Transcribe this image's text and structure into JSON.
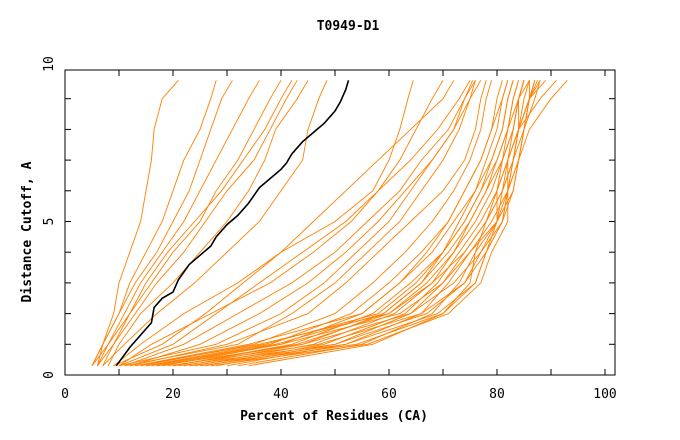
{
  "chart_data": {
    "type": "line",
    "title": "T0949-D1",
    "xlabel": "Percent of Residues (CA)",
    "ylabel": "Distance Cutoff, A",
    "xlim": [
      0,
      100
    ],
    "ylim": [
      0,
      10
    ],
    "xticks": [
      "0",
      "20",
      "40",
      "60",
      "80",
      "100"
    ],
    "yticks": [
      "0",
      "5",
      "10"
    ],
    "grid": false,
    "colors": {
      "models": "#ff8000",
      "highlight": "#000000"
    },
    "y_grid": [
      0.3,
      1,
      2,
      3,
      4,
      5,
      6,
      7,
      8,
      9,
      9.6
    ],
    "highlight_series": {
      "name": "highlighted model",
      "points": [
        [
          9.5,
          0.3
        ],
        [
          12,
          0.9
        ],
        [
          15,
          1.5
        ],
        [
          16,
          1.7
        ],
        [
          16.5,
          2.2
        ],
        [
          18,
          2.5
        ],
        [
          20,
          2.7
        ],
        [
          21,
          3.1
        ],
        [
          23,
          3.6
        ],
        [
          25,
          3.9
        ],
        [
          27,
          4.2
        ],
        [
          28,
          4.5
        ],
        [
          30,
          4.9
        ],
        [
          32,
          5.2
        ],
        [
          34,
          5.6
        ],
        [
          36,
          6.1
        ],
        [
          38,
          6.4
        ],
        [
          40,
          6.7
        ],
        [
          41,
          6.9
        ],
        [
          42,
          7.2
        ],
        [
          43,
          7.4
        ],
        [
          44,
          7.6
        ],
        [
          46,
          7.9
        ],
        [
          48,
          8.2
        ],
        [
          50,
          8.6
        ],
        [
          51,
          8.9
        ],
        [
          52,
          9.3
        ],
        [
          52.5,
          9.6
        ]
      ]
    },
    "series_x_at_y_grid": [
      [
        5,
        7,
        9,
        10,
        12,
        14,
        15,
        16,
        16.5,
        18,
        21
      ],
      [
        6,
        7,
        10,
        12,
        15,
        18,
        20,
        22,
        25,
        27,
        28
      ],
      [
        5,
        7,
        10,
        13,
        17,
        20,
        23,
        25,
        27,
        29,
        31
      ],
      [
        6,
        8,
        11,
        14,
        18,
        22,
        25,
        28,
        31,
        34,
        36
      ],
      [
        6,
        9,
        12,
        16,
        20,
        25,
        28,
        32,
        35,
        38,
        40
      ],
      [
        7,
        9,
        13,
        17,
        22,
        26,
        30,
        35,
        38,
        41,
        43
      ],
      [
        5,
        8,
        12,
        15,
        19,
        24,
        29,
        33,
        37,
        40,
        42
      ],
      [
        8,
        10,
        14,
        20,
        25,
        30,
        34,
        37,
        39,
        43,
        45
      ],
      [
        7,
        11,
        17,
        24,
        30,
        36,
        40,
        44,
        45,
        47,
        48.5
      ],
      [
        9,
        14,
        22,
        32,
        40,
        50,
        57,
        60,
        62,
        63.5,
        64.5
      ],
      [
        10,
        16,
        27,
        38,
        46,
        53,
        58,
        62,
        65,
        68,
        70
      ],
      [
        12,
        30,
        45,
        52,
        58,
        64,
        70,
        74,
        76,
        77,
        78
      ],
      [
        14,
        35,
        50,
        57,
        63,
        68,
        72,
        75,
        77,
        78,
        79
      ],
      [
        16,
        38,
        53,
        60,
        66,
        71,
        74,
        77,
        79,
        80,
        81
      ],
      [
        18,
        40,
        55,
        62,
        68,
        72,
        76,
        78,
        80,
        81,
        82
      ],
      [
        20,
        42,
        57,
        64,
        70,
        74,
        77,
        79,
        81,
        82,
        83
      ],
      [
        22,
        44,
        59,
        66,
        71,
        75,
        78,
        80,
        82,
        83,
        84
      ],
      [
        24,
        46,
        61,
        68,
        72,
        76,
        79,
        81,
        83,
        84,
        85
      ],
      [
        26,
        48,
        63,
        69,
        73,
        77,
        80,
        82,
        84,
        85,
        86
      ],
      [
        28,
        50,
        64,
        70,
        74,
        78,
        81,
        83,
        84,
        86,
        87
      ],
      [
        30,
        52,
        66,
        71,
        75,
        79,
        82,
        83,
        85,
        86,
        87.5
      ],
      [
        32,
        55,
        68,
        73,
        76,
        80,
        82,
        84,
        85,
        87,
        88
      ],
      [
        34,
        57,
        70,
        76,
        78,
        81,
        82,
        82,
        83,
        84,
        85
      ],
      [
        13,
        36,
        60,
        68,
        74,
        78,
        81,
        83,
        84,
        84,
        85
      ],
      [
        15,
        40,
        62,
        70,
        75,
        80,
        83,
        84,
        85,
        86,
        86
      ],
      [
        17,
        44,
        64,
        72,
        77,
        81,
        83,
        84,
        85,
        86,
        87
      ],
      [
        19,
        47,
        66,
        74,
        78,
        81,
        82,
        83,
        84,
        86,
        88
      ],
      [
        21,
        50,
        67,
        74,
        77,
        80,
        80,
        81,
        82,
        84,
        86
      ],
      [
        23,
        52,
        69,
        76,
        78,
        80,
        81,
        82,
        84,
        86,
        89
      ],
      [
        25,
        54,
        70,
        75,
        76,
        78,
        80,
        82,
        84,
        88,
        91
      ],
      [
        27,
        56,
        71,
        77,
        79,
        82,
        82,
        84,
        86,
        90,
        93
      ],
      [
        11,
        32,
        42,
        50,
        56,
        62,
        66,
        70,
        73,
        75,
        76
      ],
      [
        10,
        28,
        40,
        48,
        54,
        60,
        64,
        68,
        72,
        74,
        75.5
      ],
      [
        12,
        25,
        36,
        45,
        52,
        58,
        63,
        68,
        72,
        75,
        77
      ],
      [
        11,
        22,
        32,
        42,
        50,
        56,
        62,
        66,
        71,
        74,
        76
      ],
      [
        10,
        20,
        28,
        36,
        44,
        52,
        58,
        64,
        69,
        73,
        75
      ],
      [
        9,
        18,
        26,
        33,
        40,
        46,
        52,
        58,
        64,
        70,
        72
      ],
      [
        13,
        34,
        55,
        62,
        67,
        71,
        74,
        77,
        79,
        81,
        82
      ],
      [
        15,
        37,
        58,
        65,
        70,
        73,
        76,
        79,
        81,
        82,
        83
      ],
      [
        17,
        39,
        59,
        66,
        70,
        74,
        77,
        80,
        82,
        83,
        84
      ],
      [
        20,
        43,
        60,
        67,
        72,
        75,
        78,
        81,
        83,
        84,
        85
      ]
    ]
  }
}
